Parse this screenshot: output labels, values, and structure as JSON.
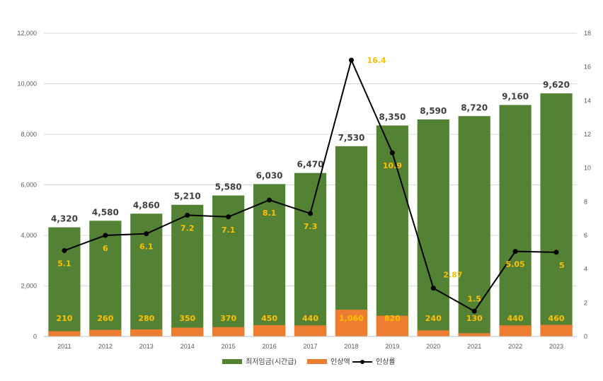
{
  "chart_data": {
    "type": "bar",
    "categories": [
      "2011",
      "2012",
      "2013",
      "2014",
      "2015",
      "2016",
      "2017",
      "2018",
      "2019",
      "2020",
      "2021",
      "2022",
      "2023"
    ],
    "series": [
      {
        "name": "최저임금(시간급)",
        "kind": "bar",
        "color": "#548235",
        "axis": "left",
        "values": [
          4320,
          4580,
          4860,
          5210,
          5580,
          6030,
          6470,
          7530,
          8350,
          8590,
          8720,
          9160,
          9620
        ],
        "labels": [
          "4,320",
          "4,580",
          "4,860",
          "5,210",
          "5,580",
          "6,030",
          "6,470",
          "7,530",
          "8,350",
          "8,590",
          "8,720",
          "9,160",
          "9,620"
        ]
      },
      {
        "name": "인상액",
        "kind": "bar",
        "color": "#ed7d31",
        "axis": "left",
        "values": [
          210,
          260,
          280,
          350,
          370,
          450,
          440,
          1060,
          820,
          240,
          130,
          440,
          460
        ],
        "labels": [
          "210",
          "260",
          "280",
          "350",
          "370",
          "450",
          "440",
          "1,060",
          "820",
          "240",
          "130",
          "440",
          "460"
        ]
      },
      {
        "name": "인상률",
        "kind": "line",
        "color": "#000000",
        "axis": "right",
        "values": [
          5.1,
          6,
          6.1,
          7.2,
          7.1,
          8.1,
          7.3,
          16.4,
          10.9,
          2.87,
          1.5,
          5.05,
          5
        ],
        "labels": [
          "5.1",
          "6",
          "6.1",
          "7.2",
          "7.1",
          "8.1",
          "7.3",
          "16.4",
          "10.9",
          "2.87",
          "1.5",
          "5.05",
          "5"
        ]
      }
    ],
    "y_left": {
      "ylim": [
        0,
        12000
      ],
      "ticks": [
        0,
        2000,
        4000,
        6000,
        8000,
        10000,
        12000
      ],
      "tick_labels": [
        "0",
        "2,000",
        "4,000",
        "6,000",
        "8,000",
        "10,000",
        "12,000"
      ]
    },
    "y_right": {
      "ylim": [
        0,
        18
      ],
      "ticks": [
        0,
        2,
        4,
        6,
        8,
        10,
        12,
        14,
        16,
        18
      ],
      "tick_labels": [
        "0",
        "2",
        "4",
        "6",
        "8",
        "10",
        "12",
        "14",
        "16",
        "18"
      ]
    },
    "grid": true,
    "legend_position": "bottom-center",
    "label_colors": {
      "total": "#404040",
      "increase": "#ffc000",
      "rate": "#ffc000"
    }
  }
}
